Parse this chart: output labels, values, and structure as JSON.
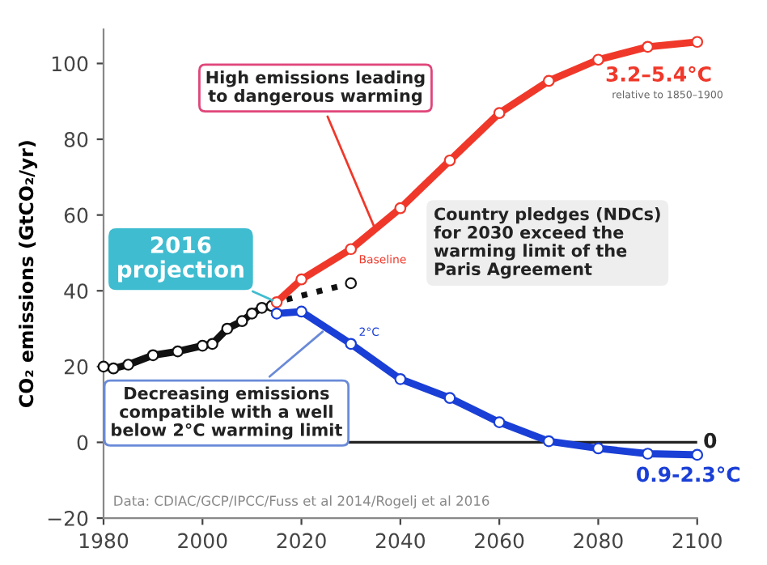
{
  "chart_data": {
    "type": "line",
    "ylabel": "CO₂ emissions (GtCO₂/yr)",
    "xlim": [
      1980,
      2100
    ],
    "ylim": [
      -20,
      109
    ],
    "xticks": [
      1980,
      2000,
      2020,
      2040,
      2060,
      2080,
      2100
    ],
    "yticks": [
      -20,
      0,
      20,
      40,
      60,
      80,
      100
    ],
    "grid": false,
    "legend": false,
    "marker": "circle",
    "series": [
      {
        "color": "#111111",
        "x": [
          1980,
          1982,
          1985,
          1990,
          1995,
          2000,
          2002,
          2005,
          2008,
          2010,
          2012,
          2014
        ],
        "values": [
          20,
          19.5,
          20.5,
          23,
          24,
          25.5,
          26,
          30,
          32,
          34,
          35.5,
          36
        ]
      },
      {
        "color": "#111111",
        "line_style": "dotted",
        "x": [
          2017,
          2030
        ],
        "values": [
          37.7,
          42
        ]
      },
      {
        "name": "Baseline",
        "color": "#f0382a",
        "x": [
          2015,
          2020,
          2030,
          2040,
          2050,
          2060,
          2070,
          2080,
          2090,
          2100
        ],
        "values": [
          37,
          43,
          51,
          61.8,
          74.4,
          86.9,
          95.4,
          101,
          104.4,
          105.7
        ]
      },
      {
        "name": "2°C",
        "color": "#1a3fd6",
        "x": [
          2015,
          2020,
          2030,
          2040,
          2050,
          2060,
          2070,
          2080,
          2090,
          2100
        ],
        "values": [
          34,
          34.5,
          26,
          16.7,
          11.7,
          5.3,
          0.3,
          -1.6,
          -3,
          -3.3
        ]
      }
    ],
    "ref_lines": [
      {
        "axis": "y",
        "value": 0,
        "label": "0",
        "color": "#222222"
      }
    ],
    "annotations": [
      {
        "text": "High emissions leading\nto dangerous warming",
        "x": 2035,
        "y": 56
      },
      {
        "text": "2016\nprojection",
        "x": 2015,
        "y": 37
      },
      "Country pledges (NDCs)\nfor 2030 exceed the\nwarming limit of the\nParis Agreement",
      {
        "text": "Decreasing emissions\ncompatible with a well\nbelow 2°C warming limit",
        "x": 2025,
        "y": 30
      },
      "3.2–5.4°C",
      "relative to 1850–1900",
      "0.9-2.3°C",
      "Data: CDIAC/GCP/IPCC/Fuss et al 2014/Rogelj et al 2016"
    ]
  }
}
